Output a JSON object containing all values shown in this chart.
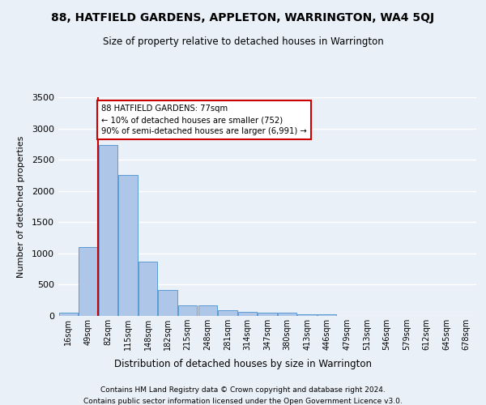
{
  "title": "88, HATFIELD GARDENS, APPLETON, WARRINGTON, WA4 5QJ",
  "subtitle": "Size of property relative to detached houses in Warrington",
  "xlabel": "Distribution of detached houses by size in Warrington",
  "ylabel": "Number of detached properties",
  "bin_labels": [
    "16sqm",
    "49sqm",
    "82sqm",
    "115sqm",
    "148sqm",
    "182sqm",
    "215sqm",
    "248sqm",
    "281sqm",
    "314sqm",
    "347sqm",
    "380sqm",
    "413sqm",
    "446sqm",
    "479sqm",
    "513sqm",
    "546sqm",
    "579sqm",
    "612sqm",
    "645sqm",
    "678sqm"
  ],
  "bar_values": [
    50,
    1100,
    2730,
    2260,
    870,
    420,
    170,
    170,
    95,
    70,
    55,
    50,
    30,
    20,
    5,
    5,
    5,
    5,
    5,
    3,
    3
  ],
  "bar_color": "#aec6e8",
  "bar_edgecolor": "#5b9bd5",
  "vline_color": "#cc0000",
  "annotation_text": "88 HATFIELD GARDENS: 77sqm\n← 10% of detached houses are smaller (752)\n90% of semi-detached houses are larger (6,991) →",
  "annotation_box_color": "#cc0000",
  "background_color": "#eaf0f8",
  "grid_color": "#ffffff",
  "ylim": [
    0,
    3500
  ],
  "yticks": [
    0,
    500,
    1000,
    1500,
    2000,
    2500,
    3000,
    3500
  ],
  "footer1": "Contains HM Land Registry data © Crown copyright and database right 2024.",
  "footer2": "Contains public sector information licensed under the Open Government Licence v3.0."
}
